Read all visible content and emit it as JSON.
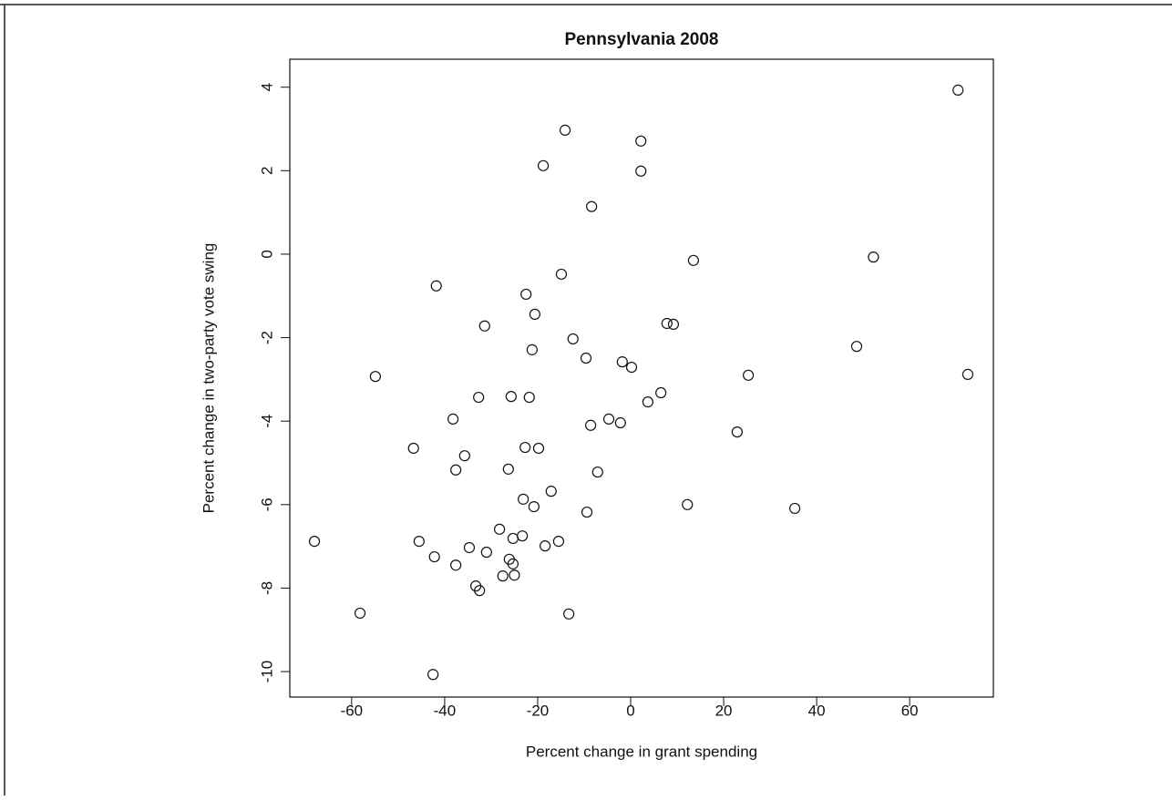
{
  "chart_data": {
    "type": "scatter",
    "title": "Pennsylvania 2008",
    "x_label": "Percent change in grant spending",
    "y_label": "Percent change in two-party vote swing",
    "x": [
      70.4,
      -14.1,
      2.2,
      -18.8,
      2.2,
      -8.4,
      13.5,
      52.2,
      -14.9,
      -41.8,
      -22.5,
      -20.6,
      -31.4,
      7.8,
      9.2,
      -12.4,
      -21.2,
      48.6,
      -9.6,
      -1.8,
      0.2,
      -54.9,
      25.3,
      72.5,
      -32.7,
      -25.7,
      -21.8,
      6.5,
      3.7,
      -38.2,
      -4.7,
      -2.2,
      -8.6,
      22.9,
      -46.7,
      -22.7,
      -19.8,
      -35.7,
      -37.6,
      -26.3,
      -7.1,
      -17.1,
      -23.1,
      -20.8,
      12.2,
      35.3,
      -9.4,
      -28.2,
      -25.3,
      -23.3,
      -68.0,
      -45.5,
      -15.5,
      -18.4,
      -34.7,
      -31.0,
      -42.2,
      -26.1,
      -25.3,
      -37.6,
      -27.5,
      -25.0,
      -33.3,
      -32.5,
      -58.2,
      -13.3,
      -42.5
    ],
    "values": [
      3.93,
      2.97,
      2.71,
      2.12,
      1.99,
      1.14,
      -0.15,
      -0.07,
      -0.48,
      -0.76,
      -0.96,
      -1.44,
      -1.72,
      -1.66,
      -1.68,
      -2.03,
      -2.29,
      -2.21,
      -2.49,
      -2.58,
      -2.71,
      -2.93,
      -2.9,
      -2.88,
      -3.43,
      -3.41,
      -3.43,
      -3.32,
      -3.54,
      -3.95,
      -3.95,
      -4.04,
      -4.1,
      -4.26,
      -4.65,
      -4.63,
      -4.65,
      -4.83,
      -5.17,
      -5.15,
      -5.22,
      -5.68,
      -5.87,
      -6.05,
      -6.0,
      -6.09,
      -6.18,
      -6.59,
      -6.81,
      -6.75,
      -6.88,
      -6.88,
      -6.88,
      -6.99,
      -7.03,
      -7.14,
      -7.25,
      -7.31,
      -7.42,
      -7.45,
      -7.71,
      -7.69,
      -7.95,
      -8.06,
      -8.6,
      -8.62,
      -10.07
    ],
    "color": "#111111",
    "xlim": [
      -73.3,
      78.0
    ],
    "ylim": [
      -10.61,
      4.67
    ],
    "xticks": [
      -60,
      -40,
      -20,
      0,
      20,
      40,
      60
    ],
    "yticks": [
      -10,
      -8,
      -6,
      -4,
      -2,
      0,
      2,
      4
    ]
  }
}
